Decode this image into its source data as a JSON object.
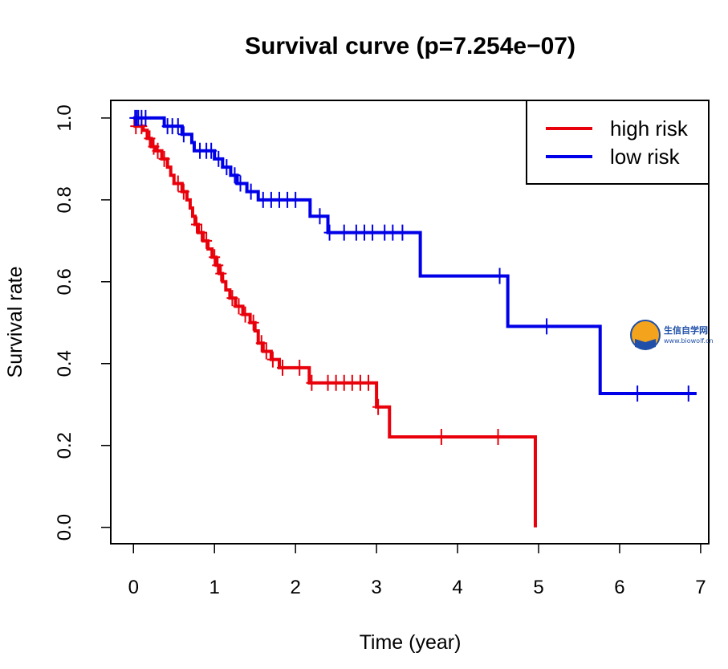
{
  "chart_data": {
    "type": "line",
    "title": "Survival curve (p=7.254e−07)",
    "xlabel": "Time (year)",
    "ylabel": "Survival rate",
    "xlim": [
      -0.28,
      7.1
    ],
    "ylim": [
      -0.04,
      1.043
    ],
    "xticks": [
      0,
      1,
      2,
      3,
      4,
      5,
      6,
      7
    ],
    "yticks": [
      0.0,
      0.2,
      0.4,
      0.6,
      0.8,
      1.0
    ],
    "xtick_labels": [
      "0",
      "1",
      "2",
      "3",
      "4",
      "5",
      "6",
      "7"
    ],
    "ytick_labels": [
      "0.0",
      "0.2",
      "0.4",
      "0.6",
      "0.8",
      "1.0"
    ],
    "grid": false,
    "legend_position": "top-right",
    "series": [
      {
        "name": "high risk",
        "color": "#e8000b",
        "steps": [
          [
            0,
            1.0
          ],
          [
            0.02,
            0.98
          ],
          [
            0.12,
            0.97
          ],
          [
            0.17,
            0.95
          ],
          [
            0.22,
            0.93
          ],
          [
            0.28,
            0.92
          ],
          [
            0.35,
            0.9
          ],
          [
            0.42,
            0.88
          ],
          [
            0.46,
            0.86
          ],
          [
            0.5,
            0.84
          ],
          [
            0.6,
            0.82
          ],
          [
            0.66,
            0.8
          ],
          [
            0.7,
            0.78
          ],
          [
            0.73,
            0.76
          ],
          [
            0.76,
            0.74
          ],
          [
            0.8,
            0.72
          ],
          [
            0.86,
            0.7
          ],
          [
            0.92,
            0.68
          ],
          [
            0.97,
            0.66
          ],
          [
            1.02,
            0.64
          ],
          [
            1.06,
            0.62
          ],
          [
            1.1,
            0.6
          ],
          [
            1.14,
            0.58
          ],
          [
            1.19,
            0.56
          ],
          [
            1.26,
            0.54
          ],
          [
            1.35,
            0.52
          ],
          [
            1.44,
            0.5
          ],
          [
            1.5,
            0.48
          ],
          [
            1.54,
            0.45
          ],
          [
            1.6,
            0.43
          ],
          [
            1.7,
            0.41
          ],
          [
            1.8,
            0.39
          ],
          [
            2.17,
            0.353
          ],
          [
            3.0,
            0.294
          ],
          [
            3.16,
            0.221
          ],
          [
            4.96,
            0.0
          ]
        ],
        "end_x": 4.96,
        "censor_times": [
          0.03,
          0.1,
          0.2,
          0.25,
          0.3,
          0.38,
          0.55,
          0.62,
          0.78,
          0.84,
          0.9,
          1.0,
          1.04,
          1.08,
          1.22,
          1.3,
          1.38,
          1.48,
          1.58,
          1.64,
          1.72,
          1.84,
          2.05,
          2.2,
          2.4,
          2.5,
          2.6,
          2.7,
          2.8,
          2.9,
          3.02,
          3.8,
          4.5
        ]
      },
      {
        "name": "low risk",
        "color": "#0000e8",
        "steps": [
          [
            0,
            1.0
          ],
          [
            0.38,
            0.98
          ],
          [
            0.6,
            0.96
          ],
          [
            0.72,
            0.94
          ],
          [
            0.75,
            0.92
          ],
          [
            1.0,
            0.9
          ],
          [
            1.1,
            0.88
          ],
          [
            1.2,
            0.86
          ],
          [
            1.28,
            0.84
          ],
          [
            1.4,
            0.82
          ],
          [
            1.54,
            0.8
          ],
          [
            2.18,
            0.76
          ],
          [
            2.4,
            0.72
          ],
          [
            3.54,
            0.614
          ],
          [
            4.62,
            0.491
          ],
          [
            5.76,
            0.327
          ]
        ],
        "end_x": 6.95,
        "censor_times": [
          0.02,
          0.04,
          0.06,
          0.1,
          0.15,
          0.42,
          0.48,
          0.55,
          0.62,
          0.82,
          0.9,
          0.96,
          1.05,
          1.15,
          1.25,
          1.32,
          1.45,
          1.6,
          1.7,
          1.8,
          1.9,
          2.0,
          2.3,
          2.42,
          2.6,
          2.75,
          2.85,
          2.95,
          3.1,
          3.2,
          3.32,
          4.52,
          5.1,
          6.22,
          6.85
        ]
      }
    ]
  },
  "watermark": {
    "title": "生信自学网",
    "url": "www.biowolf.cn"
  }
}
